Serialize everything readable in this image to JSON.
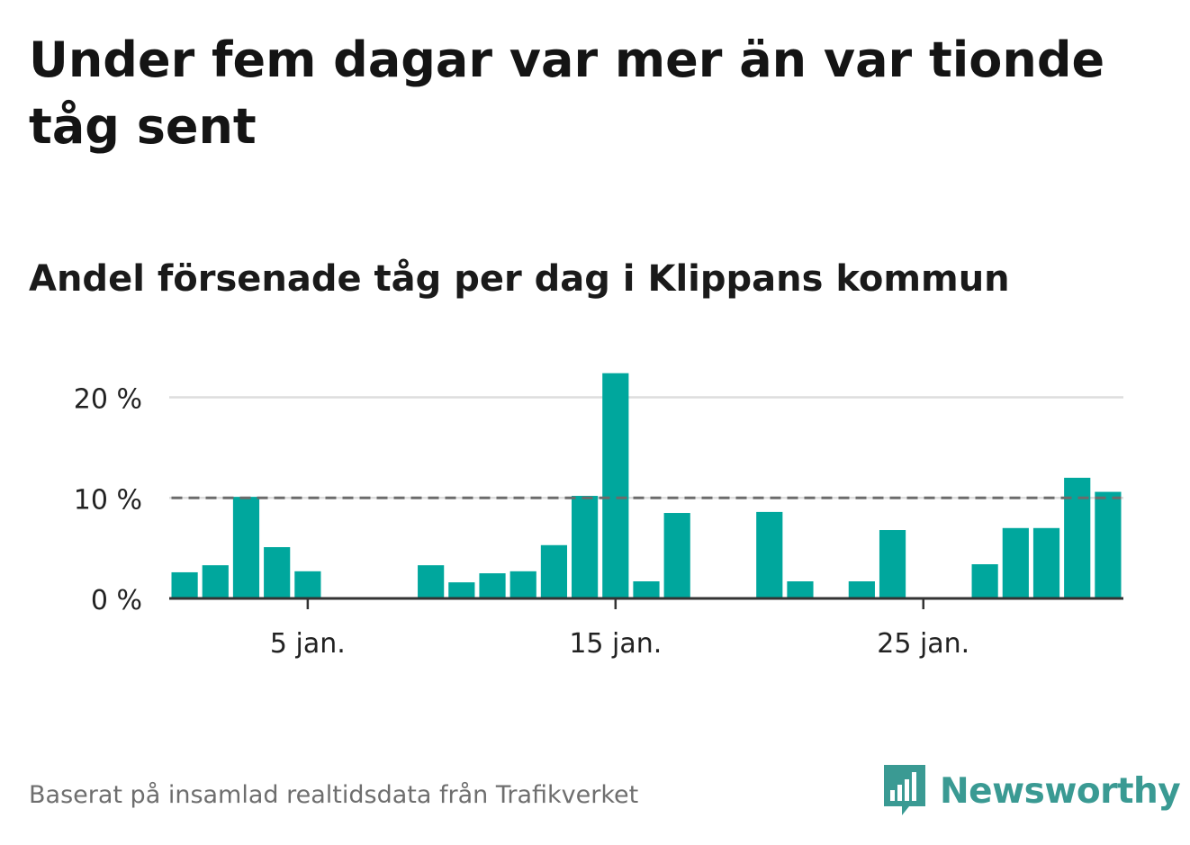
{
  "header": {
    "title": "Under fem dagar var mer än var tionde tåg sent",
    "subtitle": "Andel försenade tåg per dag i Klippans kommun"
  },
  "footer": {
    "source": "Baserat på insamlad realtidsdata från Trafikverket",
    "brand": "Newsworthy",
    "brand_icon": "bar-chart-speech-bubble-icon"
  },
  "colors": {
    "bar": "#00a79d",
    "reference_line": "#6b6b6b",
    "gridline": "#dddddd",
    "axis": "#333333",
    "brand": "#3a9a93"
  },
  "chart_data": {
    "type": "bar",
    "x": [
      1,
      2,
      3,
      4,
      5,
      6,
      7,
      8,
      9,
      10,
      11,
      12,
      13,
      14,
      15,
      16,
      17,
      18,
      19,
      20,
      21,
      22,
      23,
      24,
      25,
      26,
      27,
      28,
      29,
      30,
      31
    ],
    "values": [
      2.6,
      3.3,
      10.1,
      5.1,
      2.7,
      0,
      0,
      0,
      3.3,
      1.6,
      2.5,
      2.7,
      5.3,
      10.2,
      22.4,
      1.7,
      8.5,
      0,
      0,
      8.6,
      1.7,
      0,
      1.7,
      6.8,
      0,
      0,
      3.4,
      7.0,
      7.0,
      12.0,
      10.6
    ],
    "x_ticks": [
      {
        "x": 5,
        "label": "5 jan."
      },
      {
        "x": 15,
        "label": "15 jan."
      },
      {
        "x": 25,
        "label": "25 jan."
      }
    ],
    "y_ticks": [
      {
        "value": 0,
        "label": "0 %"
      },
      {
        "value": 10,
        "label": "10 %"
      },
      {
        "value": 20,
        "label": "20 %"
      }
    ],
    "ylim": [
      0,
      23
    ],
    "xlim": [
      0.5,
      31.5
    ],
    "reference_line": 10,
    "grid": true,
    "title": "Andel försenade tåg per dag i Klippans kommun",
    "xlabel": "",
    "ylabel": ""
  }
}
